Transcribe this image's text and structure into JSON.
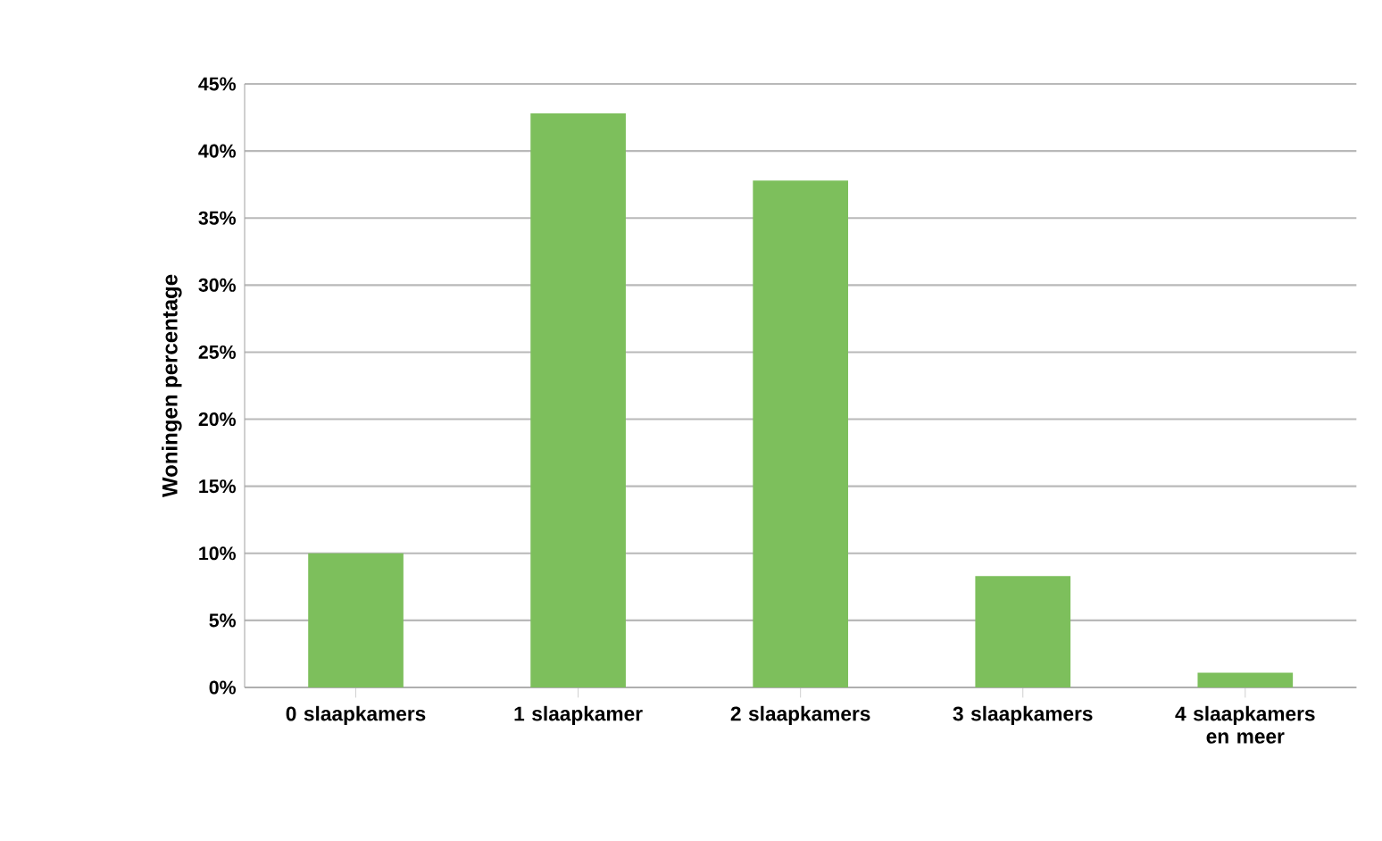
{
  "chart_data": {
    "type": "bar",
    "ylabel": "Woningen percentage",
    "categories": [
      "0 slaapkamers",
      "1 slaapkamer",
      "2 slaapkamers",
      "3 slaapkamers",
      "4 slaapkamers en meer"
    ],
    "values": [
      10,
      42.8,
      37.8,
      8.3,
      1.1
    ],
    "color": "#7dbf5c",
    "ylim": [
      0,
      45
    ],
    "yticks": [
      {
        "value": 0,
        "label": "0%"
      },
      {
        "value": 5,
        "label": "5%"
      },
      {
        "value": 10,
        "label": "10%"
      },
      {
        "value": 15,
        "label": "15%"
      },
      {
        "value": 20,
        "label": "20%"
      },
      {
        "value": 25,
        "label": "25%"
      },
      {
        "value": 30,
        "label": "30%"
      },
      {
        "value": 35,
        "label": "35%"
      },
      {
        "value": 40,
        "label": "40%"
      },
      {
        "value": 45,
        "label": "45%"
      }
    ],
    "grid": "y"
  }
}
